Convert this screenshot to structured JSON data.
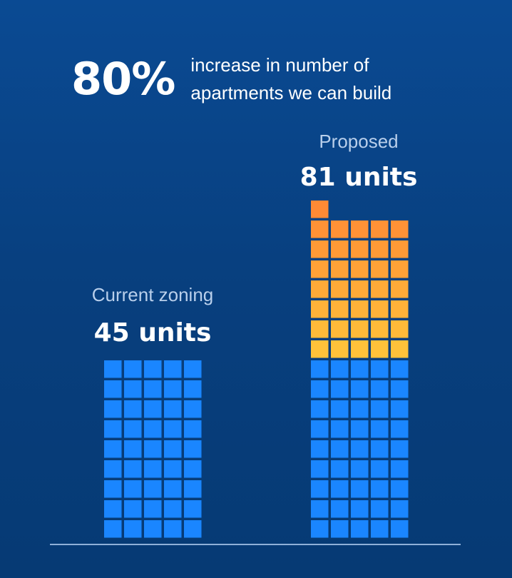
{
  "headline": {
    "percent": "80%",
    "line1": "increase in number of",
    "line2": "apartments we can build"
  },
  "chart_data": {
    "type": "bar",
    "categories": [
      "Current zoning",
      "Proposed"
    ],
    "series": [
      {
        "values": [
          45,
          45
        ],
        "color": "#1a86ff"
      },
      {
        "values": [
          0,
          36
        ],
        "color_start": "#ffc23a",
        "color_end": "#ff8a35"
      }
    ],
    "value_labels": [
      "45 units",
      "81 units"
    ],
    "units_per_row": 5,
    "title": "",
    "xlabel": "",
    "ylabel": ""
  },
  "labels": {
    "current_category": "Current zoning",
    "current_value": "45 units",
    "proposed_category": "Proposed",
    "proposed_value": "81 units"
  }
}
